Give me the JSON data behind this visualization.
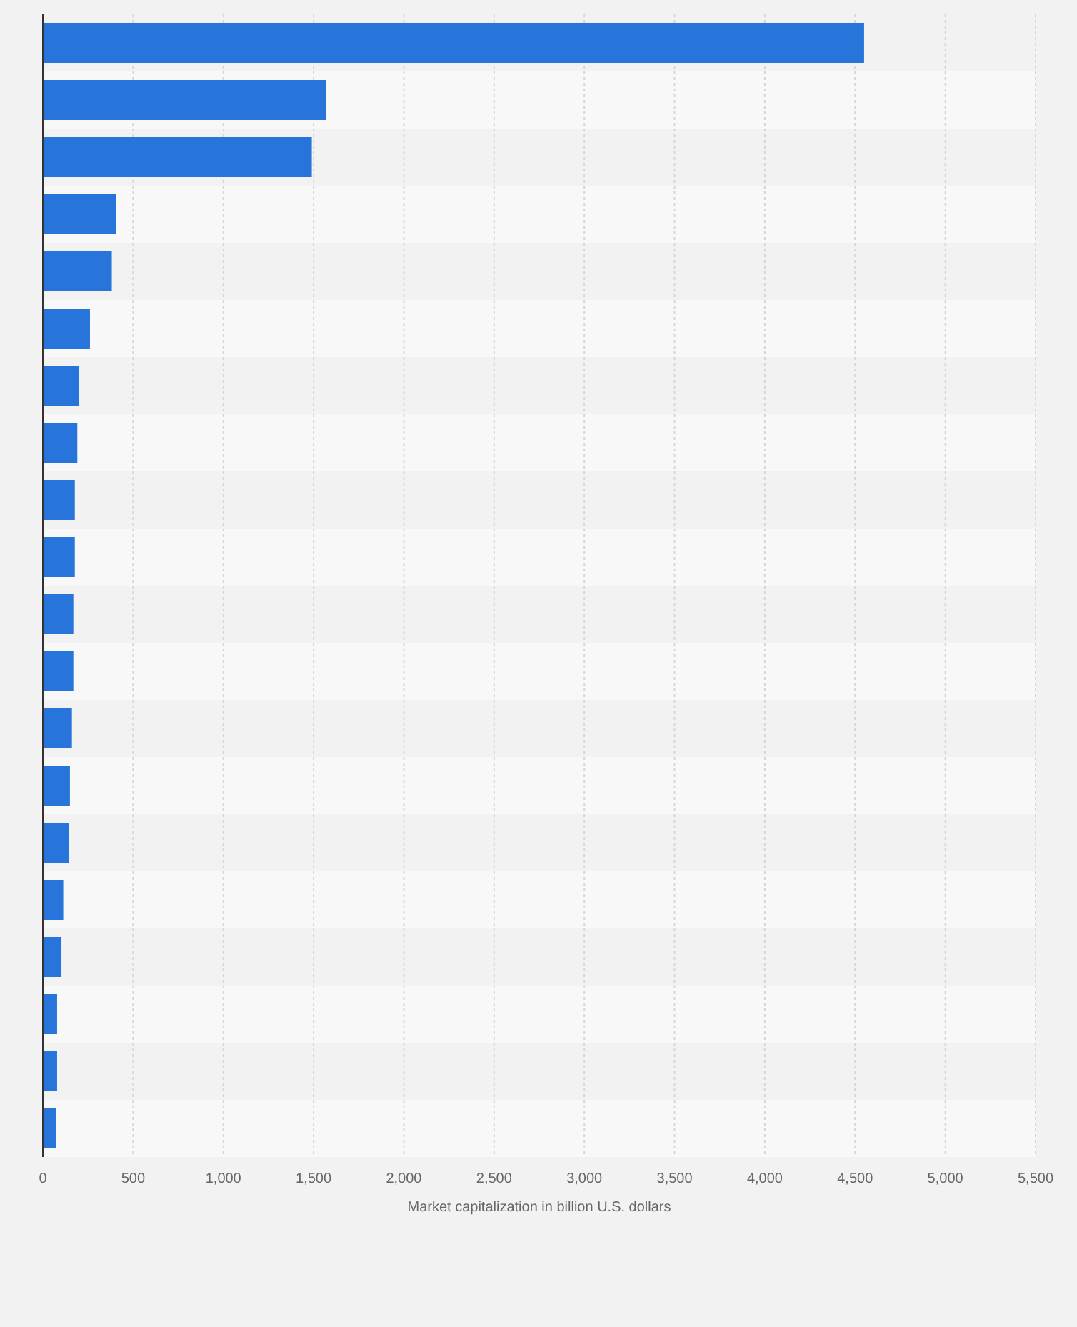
{
  "chart_data": {
    "type": "bar",
    "orientation": "horizontal",
    "xlabel": "Market capitalization in billion U.S. dollars",
    "categories": [
      null,
      null,
      null,
      null,
      null,
      null,
      null,
      null,
      null,
      null,
      null,
      null,
      null,
      null,
      null,
      null,
      null,
      null,
      null,
      null
    ],
    "values": [
      4550,
      1570,
      1490,
      405,
      382,
      261,
      199,
      191,
      177,
      177,
      169,
      169,
      161,
      150,
      145,
      113,
      103,
      79,
      79,
      74
    ],
    "color": "#2775db",
    "xlim": [
      0,
      5500
    ],
    "xticks": [
      0,
      500,
      {
        "value": 1000,
        "label": "1,000"
      },
      {
        "value": 1500,
        "label": "1,500"
      },
      {
        "value": 2000,
        "label": "2,000"
      },
      {
        "value": 2500,
        "label": "2,500"
      },
      {
        "value": 3000,
        "label": "3,000"
      },
      {
        "value": 3500,
        "label": "3,500"
      },
      {
        "value": 4000,
        "label": "4,000"
      },
      {
        "value": 4500,
        "label": "4,500"
      },
      {
        "value": 5000,
        "label": "5,000"
      },
      {
        "value": 5500,
        "label": "5,500"
      }
    ],
    "grid": "x",
    "tick_labels": "x"
  }
}
